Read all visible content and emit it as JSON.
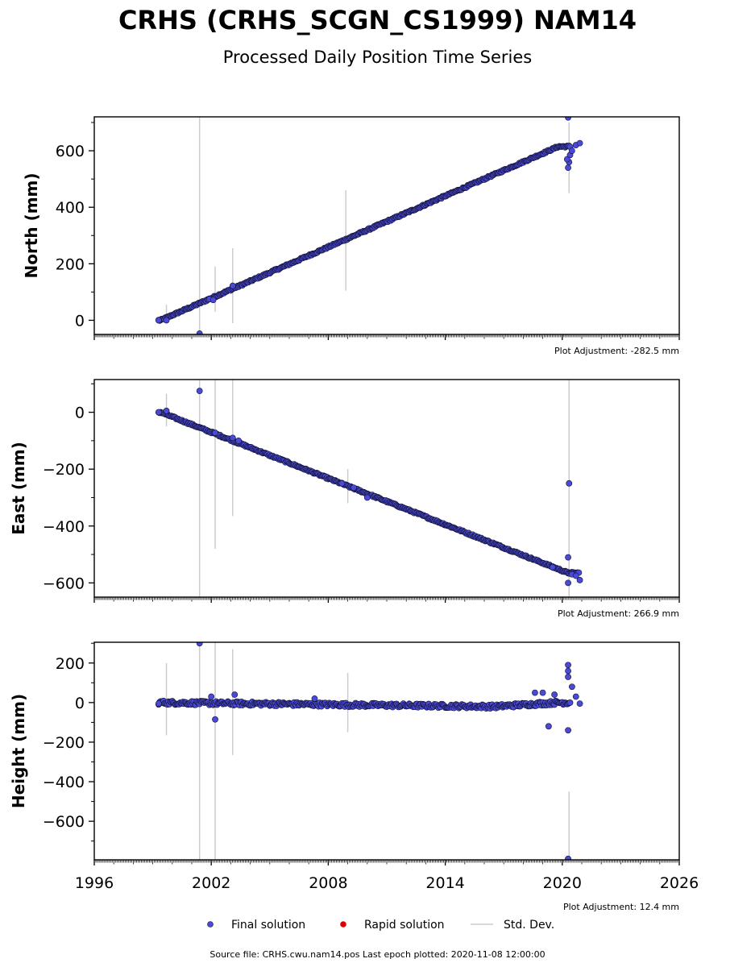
{
  "chart_data": {
    "type": "scatter",
    "title": "CRHS (CRHS_SCGN_CS1999) NAM14",
    "subtitle": "Processed Daily Position Time Series",
    "xlim": [
      1996,
      2026
    ],
    "xticks": [
      1996,
      2002,
      2008,
      2014,
      2020,
      2026
    ],
    "xtick_labels": [
      "1996",
      "2002",
      "2008",
      "2014",
      "2020",
      "2026"
    ],
    "panels": [
      {
        "id": "north",
        "ylabel": "North (mm)",
        "ylim": [
          -50,
          720
        ],
        "yticks": [
          0,
          200,
          400,
          600
        ],
        "ytick_labels": [
          "0",
          "200",
          "400",
          "600"
        ],
        "adjustment": "Plot Adjustment: -282.5 mm",
        "trend": [
          [
            1999.4,
            0
          ],
          [
            2019.8,
            615
          ]
        ],
        "wobble": 3,
        "outliers": [
          [
            1999.3,
            0
          ],
          [
            1999.7,
            0
          ],
          [
            2001.4,
            -47
          ],
          [
            2001.9,
            75
          ],
          [
            2002.1,
            72
          ],
          [
            2003.1,
            122
          ],
          [
            2020.3,
            718
          ],
          [
            2020.3,
            540
          ],
          [
            2020.35,
            560
          ],
          [
            2020.25,
            570
          ],
          [
            2020.4,
            585
          ],
          [
            2020.5,
            600
          ],
          [
            2020.7,
            620
          ],
          [
            2020.9,
            627
          ]
        ],
        "std_dev": [
          [
            1999.7,
            0,
            55
          ],
          [
            2001.4,
            -50,
            720
          ],
          [
            2002.2,
            30,
            190
          ],
          [
            2003.1,
            -10,
            255
          ],
          [
            2008.9,
            105,
            460
          ],
          [
            2020.35,
            450,
            700
          ]
        ]
      },
      {
        "id": "east",
        "ylabel": "East (mm)",
        "ylim": [
          -650,
          115
        ],
        "yticks": [
          -600,
          -400,
          -200,
          0
        ],
        "ytick_labels": [
          "−600",
          "−400",
          "−200",
          "0"
        ],
        "adjustment": "Plot Adjustment: 266.9 mm",
        "trend": [
          [
            1999.4,
            0
          ],
          [
            2020.3,
            -565
          ]
        ],
        "wobble": 3,
        "outliers": [
          [
            1999.3,
            0
          ],
          [
            1999.7,
            5
          ],
          [
            2001.4,
            75
          ],
          [
            2002.2,
            -72
          ],
          [
            2003.1,
            -90
          ],
          [
            2003.4,
            -100
          ],
          [
            2008.7,
            -250
          ],
          [
            2009.3,
            -265
          ],
          [
            2010.0,
            -300
          ],
          [
            2020.35,
            -250
          ],
          [
            2020.3,
            -510
          ],
          [
            2020.3,
            -600
          ],
          [
            2020.5,
            -570
          ],
          [
            2020.7,
            -575
          ],
          [
            2020.9,
            -590
          ],
          [
            2019.5,
            -545
          ]
        ],
        "std_dev": [
          [
            1999.7,
            -50,
            65
          ],
          [
            2001.4,
            -650,
            115
          ],
          [
            2002.2,
            -480,
            115
          ],
          [
            2003.1,
            -365,
            115
          ],
          [
            2009.0,
            -320,
            -200
          ],
          [
            2020.35,
            -650,
            115
          ]
        ]
      },
      {
        "id": "height",
        "ylabel": "Height (mm)",
        "ylim": [
          -795,
          305
        ],
        "yticks": [
          -600,
          -400,
          -200,
          0,
          200
        ],
        "ytick_labels": [
          "−600",
          "−400",
          "−200",
          "0",
          "200"
        ],
        "adjustment": "Plot Adjustment: 12.4 mm",
        "trend": [
          [
            1999.4,
            0
          ],
          [
            2016.5,
            -20
          ],
          [
            2019.8,
            0
          ]
        ],
        "wobble": 10,
        "outliers": [
          [
            1999.3,
            -5
          ],
          [
            2001.4,
            300
          ],
          [
            2002.0,
            30
          ],
          [
            2002.2,
            -85
          ],
          [
            2003.2,
            40
          ],
          [
            2007.3,
            20
          ],
          [
            2019.0,
            50
          ],
          [
            2019.3,
            -120
          ],
          [
            2019.6,
            40
          ],
          [
            2020.3,
            190
          ],
          [
            2020.3,
            160
          ],
          [
            2020.3,
            130
          ],
          [
            2020.3,
            -140
          ],
          [
            2020.3,
            -790
          ],
          [
            2020.5,
            80
          ],
          [
            2020.7,
            30
          ],
          [
            2020.9,
            -5
          ],
          [
            2018.6,
            50
          ]
        ],
        "std_dev": [
          [
            1999.7,
            -165,
            200
          ],
          [
            2001.4,
            -795,
            305
          ],
          [
            2002.2,
            -795,
            305
          ],
          [
            2003.1,
            -265,
            270
          ],
          [
            2009.0,
            -150,
            150
          ],
          [
            2020.35,
            -795,
            -450
          ]
        ]
      }
    ],
    "legend": {
      "final": "Final solution",
      "rapid": "Rapid solution",
      "std": "Std. Dev.",
      "placement": "bottom-center"
    },
    "source_note": "Source file: CRHS.cwu.nam14.pos  Last epoch plotted: 2020-11-08 12:00:00",
    "colors": {
      "final_fill": "#4a4ad6",
      "final_edge": "#111133",
      "rapid": "#dd0000",
      "std_dev": "#cccccc"
    },
    "date_range": [
      1999.3,
      2020.86
    ]
  }
}
